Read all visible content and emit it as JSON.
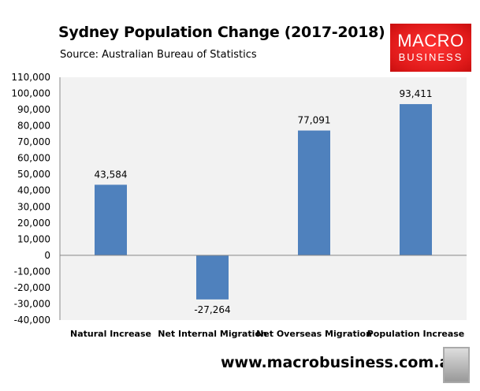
{
  "header": {
    "title": "Sydney Population Change (2017-2018)",
    "subtitle": "Source: Australian Bureau of Statistics"
  },
  "logo": {
    "line1": "MACRO",
    "line2": "BUSINESS"
  },
  "footer": {
    "url": "www.macrobusiness.com.au",
    "icon": "wolf-icon"
  },
  "colors": {
    "bar": "#4f81bd",
    "plot_bg": "#f2f2f2",
    "logo": "#e8201f"
  },
  "chart_data": {
    "type": "bar",
    "title": "Sydney Population Change (2017-2018)",
    "categories": [
      "Natural Increase",
      "Net Internal Migration",
      "Net Overseas Migration",
      "Population Increase"
    ],
    "values": [
      43584,
      -27264,
      77091,
      93411
    ],
    "labels": [
      "43,584",
      "-27,264",
      "77,091",
      "93,411"
    ],
    "ylim": [
      -40000,
      110000
    ],
    "yticks": [
      "110,000",
      "100,000",
      "90,000",
      "80,000",
      "70,000",
      "60,000",
      "50,000",
      "40,000",
      "30,000",
      "20,000",
      "10,000",
      "0",
      "-10,000",
      "-20,000",
      "-30,000",
      "-40,000"
    ],
    "grid": false,
    "legend": "none",
    "xlabel": "",
    "ylabel": ""
  }
}
